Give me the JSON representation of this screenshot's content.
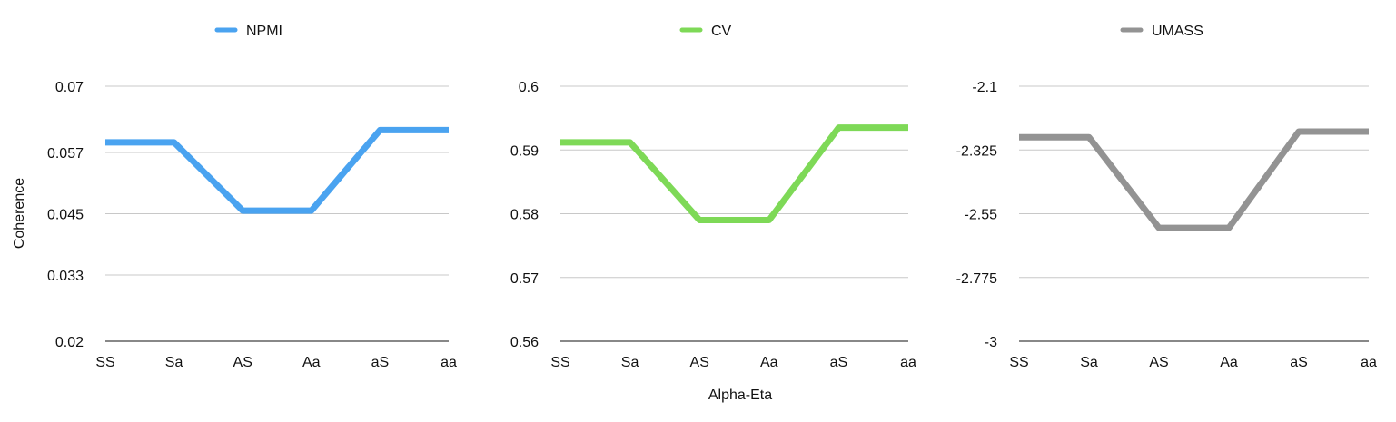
{
  "chart_data": [
    {
      "type": "line",
      "title": "",
      "xlabel": "",
      "ylabel": "Coherence",
      "categories": [
        "SS",
        "Sa",
        "AS",
        "Aa",
        "aS",
        "aa"
      ],
      "series": [
        {
          "name": "NPMI",
          "color": "#4aa3f0",
          "values": [
            0.059,
            0.059,
            0.0456,
            0.0456,
            0.0614,
            0.0614
          ]
        }
      ],
      "y_ticks": [
        "0.07",
        "0.057",
        "0.045",
        "0.033",
        "0.02"
      ],
      "ylim": [
        0.02,
        0.07
      ],
      "grid": true,
      "legend": "top-center"
    },
    {
      "type": "line",
      "title": "",
      "xlabel": "Alpha-Eta",
      "ylabel": "",
      "categories": [
        "SS",
        "Sa",
        "AS",
        "Aa",
        "aS",
        "aa"
      ],
      "series": [
        {
          "name": "CV",
          "color": "#7ed957",
          "values": [
            0.5912,
            0.5912,
            0.579,
            0.579,
            0.5935,
            0.5935
          ]
        }
      ],
      "y_ticks": [
        "0.6",
        "0.59",
        "0.58",
        "0.57",
        "0.56"
      ],
      "ylim": [
        0.56,
        0.6
      ],
      "grid": true,
      "legend": "top-center"
    },
    {
      "type": "line",
      "title": "",
      "xlabel": "",
      "ylabel": "",
      "categories": [
        "SS",
        "Sa",
        "AS",
        "Aa",
        "aS",
        "aa"
      ],
      "series": [
        {
          "name": "UMASS",
          "color": "#939393",
          "values": [
            -2.28,
            -2.28,
            -2.6,
            -2.6,
            -2.26,
            -2.26
          ]
        }
      ],
      "y_ticks": [
        "-2.1",
        "-2.325",
        "-2.55",
        "-2.775",
        "-3"
      ],
      "ylim": [
        -3,
        -2.1
      ],
      "grid": true,
      "legend": "top-center"
    }
  ]
}
